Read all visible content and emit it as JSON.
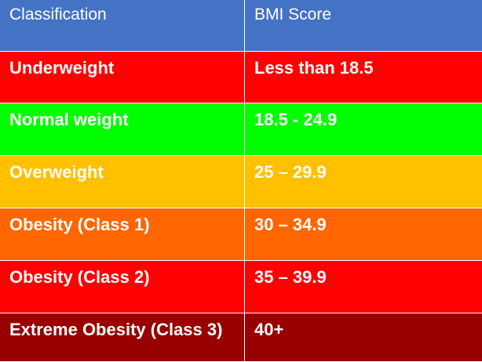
{
  "header": {
    "classification": "Classification",
    "bmi_score": "BMI Score",
    "color": "#4472c4"
  },
  "rows": [
    {
      "classification": "Underweight",
      "bmi": "Less than 18.5",
      "color": "#ff0000"
    },
    {
      "classification": "Normal weight",
      "bmi": "18.5 - 24.9",
      "color": "#00ff00"
    },
    {
      "classification": "Overweight",
      "bmi": "25 – 29.9",
      "color": "#ffc000"
    },
    {
      "classification": "Obesity (Class 1)",
      "bmi": "30 – 34.9",
      "color": "#ff6600"
    },
    {
      "classification": "Obesity (Class 2)",
      "bmi": "35 – 39.9",
      "color": "#ff0000"
    },
    {
      "classification": "Extreme Obesity (Class 3)",
      "bmi": "40+",
      "color": "#990000"
    }
  ]
}
